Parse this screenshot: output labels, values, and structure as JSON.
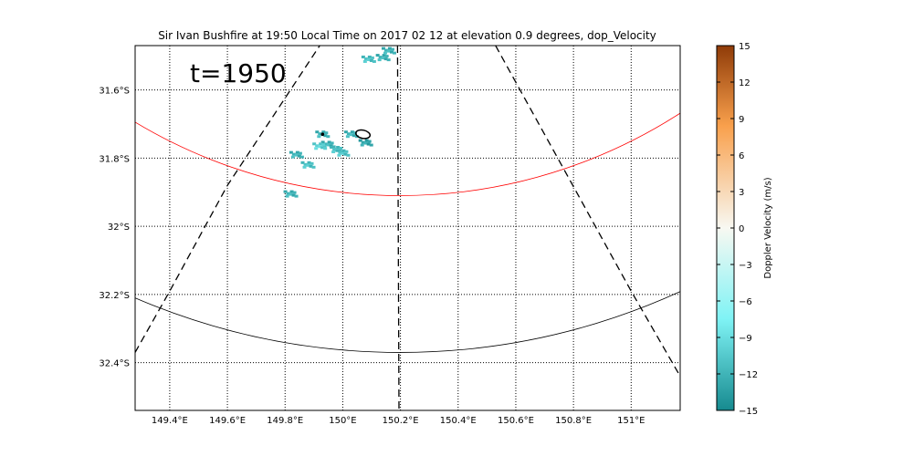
{
  "chart_data": {
    "type": "radar_ppi_map",
    "title": "Sir Ivan Bushfire at 19:50 Local Time on 2017 02 12 at elevation 0.9 degrees, dop_Velocity",
    "annotation": "t=1950",
    "xlim": [
      149.28,
      151.17
    ],
    "ylim": [
      -32.54,
      -31.47
    ],
    "x_ticks": [
      149.4,
      149.6,
      149.8,
      150.0,
      150.2,
      150.4,
      150.6,
      150.8,
      151.0
    ],
    "x_tick_labels": [
      "149.4°E",
      "149.6°E",
      "149.8°E",
      "150°E",
      "150.2°E",
      "150.4°E",
      "150.6°E",
      "150.8°E",
      "151°E"
    ],
    "y_ticks": [
      -31.6,
      -31.8,
      -32.0,
      -32.2,
      -32.4
    ],
    "y_tick_labels": [
      "31.6°S",
      "31.8°S",
      "32°S",
      "32.2°S",
      "32.4°S"
    ],
    "grid": true,
    "grid_style": "dotted",
    "radar_location": {
      "lon": 150.2,
      "lat": -30.4
    },
    "range_rings": [
      {
        "color": "#ff0000",
        "lowest_lat": -31.91
      },
      {
        "color": "#000000",
        "lowest_lat": -32.37
      }
    ],
    "azimuth_lines": [
      {
        "style": "dashed",
        "points": [
          [
            149.28,
            -32.37
          ],
          [
            149.4,
            -32.19
          ],
          [
            149.6,
            -31.88
          ],
          [
            149.92,
            -31.47
          ]
        ]
      },
      {
        "style": "dashed",
        "points": [
          [
            150.19,
            -31.47
          ],
          [
            150.195,
            -32.54
          ]
        ]
      },
      {
        "style": "dashed",
        "points": [
          [
            150.53,
            -31.47
          ],
          [
            151.0,
            -32.19
          ],
          [
            151.17,
            -32.44
          ]
        ]
      }
    ],
    "fire_outline": {
      "center": [
        150.07,
        -31.73
      ],
      "rx": 0.025,
      "ry": 0.012
    },
    "echo_cells": [
      {
        "lon": 149.93,
        "lat": -31.73,
        "v": -12
      },
      {
        "lon": 149.95,
        "lat": -31.76,
        "v": -12
      },
      {
        "lon": 149.98,
        "lat": -31.775,
        "v": -11
      },
      {
        "lon": 150.0,
        "lat": -31.785,
        "v": -11
      },
      {
        "lon": 149.92,
        "lat": -31.765,
        "v": -10
      },
      {
        "lon": 150.03,
        "lat": -31.73,
        "v": -12
      },
      {
        "lon": 150.08,
        "lat": -31.755,
        "v": -13
      },
      {
        "lon": 149.84,
        "lat": -31.79,
        "v": -12
      },
      {
        "lon": 149.88,
        "lat": -31.82,
        "v": -11
      },
      {
        "lon": 149.82,
        "lat": -31.905,
        "v": -12
      },
      {
        "lon": 150.14,
        "lat": -31.505,
        "v": -12
      },
      {
        "lon": 150.09,
        "lat": -31.51,
        "v": -11
      },
      {
        "lon": 150.16,
        "lat": -31.485,
        "v": -12
      }
    ],
    "colorbar": {
      "label": "Doppler Velocity (m/s)",
      "range": [
        -15,
        15
      ],
      "ticks": [
        15,
        12,
        9,
        6,
        3,
        0,
        -3,
        -6,
        -9,
        -12,
        -15
      ],
      "tick_labels": [
        "15",
        "12",
        "9",
        "6",
        "3",
        "0",
        "−3",
        "−6",
        "−9",
        "−12",
        "−15"
      ],
      "colors": {
        "min": "#168a8f",
        "low": "#7ff3f5",
        "mid": "#f8f8f2",
        "high": "#f9a04c",
        "max": "#8f3b08"
      }
    }
  }
}
